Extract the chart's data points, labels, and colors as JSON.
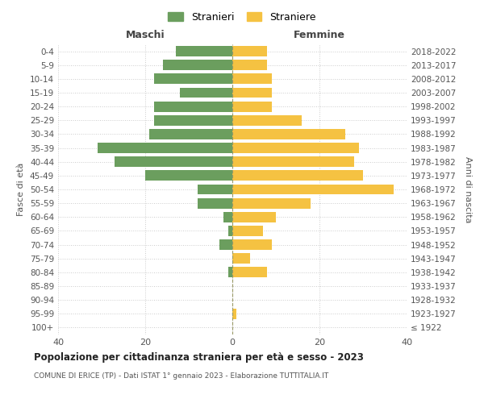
{
  "age_groups": [
    "100+",
    "95-99",
    "90-94",
    "85-89",
    "80-84",
    "75-79",
    "70-74",
    "65-69",
    "60-64",
    "55-59",
    "50-54",
    "45-49",
    "40-44",
    "35-39",
    "30-34",
    "25-29",
    "20-24",
    "15-19",
    "10-14",
    "5-9",
    "0-4"
  ],
  "birth_years": [
    "≤ 1922",
    "1923-1927",
    "1928-1932",
    "1933-1937",
    "1938-1942",
    "1943-1947",
    "1948-1952",
    "1953-1957",
    "1958-1962",
    "1963-1967",
    "1968-1972",
    "1973-1977",
    "1978-1982",
    "1983-1987",
    "1988-1992",
    "1993-1997",
    "1998-2002",
    "2003-2007",
    "2008-2012",
    "2013-2017",
    "2018-2022"
  ],
  "males": [
    0,
    0,
    0,
    0,
    1,
    0,
    3,
    1,
    2,
    8,
    8,
    20,
    27,
    31,
    19,
    18,
    18,
    12,
    18,
    16,
    13
  ],
  "females": [
    0,
    1,
    0,
    0,
    8,
    4,
    9,
    7,
    10,
    18,
    37,
    30,
    28,
    29,
    26,
    16,
    9,
    9,
    9,
    8,
    8
  ],
  "male_color": "#6b9e5e",
  "female_color": "#f5c242",
  "title": "Popolazione per cittadinanza straniera per età e sesso - 2023",
  "subtitle": "COMUNE DI ERICE (TP) - Dati ISTAT 1° gennaio 2023 - Elaborazione TUTTITALIA.IT",
  "ylabel_left": "Fasce di età",
  "ylabel_right": "Anni di nascita",
  "xlabel_maschi": "Maschi",
  "xlabel_femmine": "Femmine",
  "legend_males": "Stranieri",
  "legend_females": "Straniere",
  "xlim": 40,
  "background_color": "#ffffff",
  "grid_color": "#cccccc"
}
